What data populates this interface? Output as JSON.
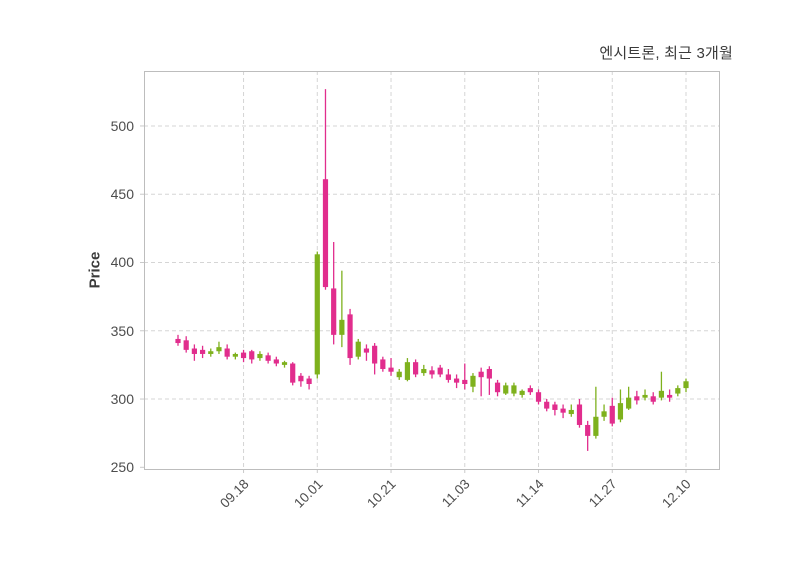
{
  "figure": {
    "title": "엔시트론, 최근 3개월",
    "y_axis_label": "Price"
  },
  "chart_data": {
    "type": "candlestick",
    "title": "엔시트론, 최근 3개월",
    "ylabel": "Price",
    "xlabel": "",
    "grid": "dashed-both-axes",
    "legend": "none",
    "ylim": [
      248.75,
      540.25
    ],
    "y_ticks": [
      250,
      300,
      350,
      400,
      450,
      500
    ],
    "x_tick_labels": [
      "09.18",
      "10.01",
      "10.21",
      "11.03",
      "11.14",
      "11.27",
      "12.10"
    ],
    "x_tick_indices": [
      8,
      17,
      26,
      35,
      44,
      53,
      62
    ],
    "colors": {
      "up": "#7eb11d",
      "down": "#e12d8d",
      "grid": "#d5d5d5",
      "panel_border": "#bdbdbd",
      "tick_stub": "#c9c9c9",
      "tick_text": "#4d4d4d",
      "title_text": "#3a3a3a"
    },
    "candles_format": [
      "open",
      "high",
      "low",
      "close"
    ],
    "candles": [
      [
        344,
        347,
        339,
        341
      ],
      [
        343,
        346,
        334,
        336
      ],
      [
        337,
        340,
        328,
        333
      ],
      [
        336,
        339,
        330,
        333
      ],
      [
        333,
        337,
        331,
        335
      ],
      [
        335,
        342,
        333,
        338
      ],
      [
        337,
        340,
        329,
        331
      ],
      [
        331,
        334,
        329,
        333
      ],
      [
        334,
        336,
        327,
        330
      ],
      [
        335,
        336,
        326,
        329
      ],
      [
        330,
        335,
        328,
        333
      ],
      [
        332,
        334,
        326,
        328
      ],
      [
        329,
        331,
        324,
        326
      ],
      [
        325,
        328,
        323,
        327
      ],
      [
        326,
        327,
        310,
        312
      ],
      [
        317,
        319,
        309,
        313
      ],
      [
        315,
        317,
        307,
        311
      ],
      [
        318,
        408,
        315,
        406
      ],
      [
        461,
        527,
        380,
        382
      ],
      [
        381,
        415,
        340,
        347
      ],
      [
        347,
        394,
        338,
        358
      ],
      [
        362,
        366,
        325,
        330
      ],
      [
        331,
        344,
        329,
        342
      ],
      [
        337,
        340,
        328,
        334
      ],
      [
        339,
        341,
        318,
        326
      ],
      [
        329,
        331,
        320,
        322
      ],
      [
        323,
        330,
        317,
        320
      ],
      [
        316,
        322,
        314,
        320
      ],
      [
        314,
        330,
        313,
        327
      ],
      [
        327,
        329,
        316,
        318
      ],
      [
        319,
        325,
        317,
        322
      ],
      [
        321,
        324,
        315,
        318
      ],
      [
        323,
        325,
        316,
        318
      ],
      [
        318,
        322,
        312,
        314
      ],
      [
        315,
        318,
        308,
        312
      ],
      [
        314,
        326,
        307,
        311
      ],
      [
        309,
        319,
        305,
        317
      ],
      [
        320,
        323,
        302,
        316
      ],
      [
        322,
        324,
        303,
        315
      ],
      [
        312,
        314,
        302,
        305
      ],
      [
        304,
        312,
        303,
        310
      ],
      [
        304,
        312,
        302,
        310
      ],
      [
        303,
        307,
        301,
        306
      ],
      [
        308,
        310,
        303,
        305
      ],
      [
        305,
        307,
        296,
        298
      ],
      [
        298,
        300,
        291,
        293
      ],
      [
        296,
        298,
        288,
        292
      ],
      [
        293,
        296,
        286,
        290
      ],
      [
        289,
        296,
        287,
        292
      ],
      [
        296,
        300,
        279,
        281
      ],
      [
        281,
        284,
        262,
        273
      ],
      [
        273,
        309,
        271,
        287
      ],
      [
        287,
        296,
        284,
        291
      ],
      [
        295,
        301,
        280,
        282
      ],
      [
        285,
        307,
        283,
        297
      ],
      [
        293,
        309,
        292,
        301
      ],
      [
        302,
        306,
        296,
        299
      ],
      [
        301,
        307,
        299,
        303
      ],
      [
        302,
        305,
        296,
        298
      ],
      [
        301,
        320,
        299,
        306
      ],
      [
        303,
        307,
        298,
        301
      ],
      [
        304,
        310,
        302,
        308
      ],
      [
        308,
        315,
        305,
        313
      ]
    ]
  }
}
